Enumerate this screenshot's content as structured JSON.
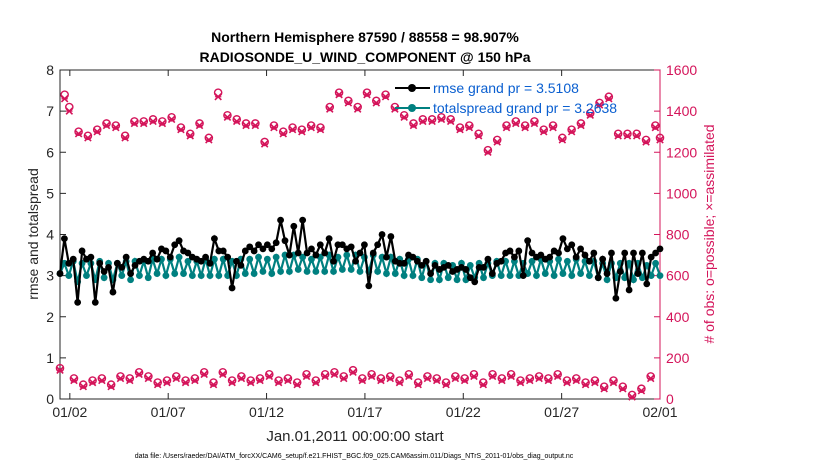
{
  "title_line1": "Northern Hemisphere 87590 / 88558 = 98.907%",
  "title_line2": "RADIOSONDE_U_WIND_COMPONENT @ 150 hPa",
  "xlabel": "Jan.01,2011 00:00:00 start",
  "ylabel_left": "rmse and totalspread",
  "ylabel_right": "# of obs: o=possible; ×=assimilated",
  "footer": "data file: /Users/raeder/DAI/ATM_forcXX/CAM6_setup/f.e21.FHIST_BGC.f09_025.CAM6assim.011/Diags_NTrS_2011-01/obs_diag_output.nc",
  "legend": [
    {
      "label": "rmse grand pr = 3.5108",
      "color": "#000000"
    },
    {
      "label": "totalspread grand pr = 3.2638",
      "color": "#008080"
    }
  ],
  "colors": {
    "rmse": "#000000",
    "spread": "#008080",
    "obs": "#d4145a",
    "axis": "#262626",
    "legend_text": "#0a5fd0"
  },
  "chart_data": {
    "type": "line",
    "x_ticks": [
      "01/02",
      "01/07",
      "01/12",
      "01/17",
      "01/22",
      "01/27",
      "02/01"
    ],
    "x_tick_days": [
      1,
      6,
      11,
      16,
      21,
      26,
      31
    ],
    "xlim_days": [
      0.5,
      31
    ],
    "ylim_left": [
      0,
      8
    ],
    "yticks_left": [
      "0",
      "1",
      "2",
      "3",
      "4",
      "5",
      "6",
      "7",
      "8"
    ],
    "ylim_right": [
      0,
      1600
    ],
    "yticks_right": [
      "0",
      "200",
      "400",
      "600",
      "800",
      "1000",
      "1200",
      "1400",
      "1600"
    ],
    "series": [
      {
        "name": "rmse",
        "axis": "left",
        "marker": "circle",
        "values": [
          3.05,
          3.9,
          3.3,
          3.4,
          2.35,
          3.6,
          3.4,
          3.45,
          2.35,
          3.3,
          3.1,
          3.2,
          2.6,
          3.3,
          3.2,
          3.45,
          3.05,
          3.25,
          3.35,
          3.4,
          3.35,
          3.55,
          3.4,
          3.65,
          3.6,
          3.45,
          3.75,
          3.85,
          3.6,
          3.55,
          3.45,
          3.4,
          3.35,
          3.45,
          3.3,
          3.9,
          3.6,
          3.6,
          3.45,
          2.7,
          3.35,
          3.25,
          3.6,
          3.7,
          3.6,
          3.75,
          3.65,
          3.75,
          3.65,
          3.8,
          4.35,
          3.85,
          3.5,
          4.2,
          3.55,
          4.35,
          3.55,
          3.65,
          3.5,
          3.75,
          3.55,
          3.9,
          3.35,
          3.75,
          3.75,
          3.65,
          3.7,
          3.35,
          3.55,
          3.75,
          2.75,
          3.55,
          3.75,
          4.0,
          3.45,
          3.95,
          3.35,
          3.3,
          3.3,
          3.5,
          3.45,
          3.35,
          3.25,
          3.35,
          3.05,
          3.25,
          3.15,
          3.2,
          3.25,
          3.1,
          3.15,
          3.2,
          3.15,
          2.95,
          2.85,
          3.2,
          3.2,
          3.4,
          3.05,
          3.3,
          3.35,
          3.55,
          3.6,
          3.45,
          3.6,
          3.0,
          3.85,
          3.55,
          3.45,
          3.5,
          3.4,
          3.45,
          3.6,
          3.55,
          3.9,
          3.65,
          3.75,
          3.45,
          3.65,
          3.5,
          3.35,
          3.55,
          2.95,
          3.4,
          3.05,
          3.55,
          2.45,
          3.1,
          3.55,
          2.65,
          3.55,
          3.05,
          3.55,
          2.8,
          3.45,
          3.55,
          3.65
        ]
      },
      {
        "name": "totalspread",
        "axis": "left",
        "marker": "circle",
        "values": [
          3.05,
          3.3,
          3.0,
          3.35,
          2.85,
          3.3,
          3.0,
          3.3,
          2.9,
          3.35,
          2.95,
          3.3,
          2.9,
          3.3,
          3.0,
          3.35,
          2.9,
          3.35,
          3.0,
          3.35,
          2.95,
          3.4,
          3.05,
          3.4,
          3.0,
          3.4,
          3.05,
          3.45,
          3.05,
          3.35,
          3.0,
          3.35,
          3.0,
          3.4,
          3.0,
          3.4,
          3.0,
          3.4,
          3.0,
          3.35,
          3.0,
          3.4,
          3.05,
          3.4,
          3.05,
          3.45,
          3.1,
          3.4,
          3.05,
          3.45,
          3.1,
          3.5,
          3.1,
          3.5,
          3.15,
          3.45,
          3.1,
          3.4,
          3.1,
          3.45,
          3.1,
          3.5,
          3.1,
          3.45,
          3.15,
          3.5,
          3.15,
          3.5,
          3.1,
          3.45,
          3.1,
          3.5,
          3.1,
          3.45,
          3.05,
          3.45,
          3.05,
          3.4,
          3.0,
          3.4,
          3.0,
          3.4,
          2.95,
          3.35,
          2.9,
          3.3,
          2.9,
          3.3,
          2.95,
          3.25,
          2.9,
          3.3,
          2.9,
          3.25,
          2.95,
          3.3,
          2.95,
          3.3,
          3.0,
          3.35,
          3.0,
          3.35,
          3.0,
          3.35,
          3.0,
          3.3,
          3.05,
          3.35,
          3.0,
          3.4,
          3.05,
          3.35,
          3.0,
          3.4,
          3.05,
          3.35,
          3.0,
          3.4,
          3.05,
          3.35,
          3.0,
          3.35,
          2.95,
          3.3,
          2.9,
          3.3,
          2.95,
          3.3,
          2.95,
          3.3,
          2.9,
          3.3,
          2.95,
          3.25,
          3.0,
          3.3,
          3.0
        ]
      },
      {
        "name": "obs possible",
        "axis": "right",
        "marker": "o",
        "values": [
          150,
          1480,
          1420,
          100,
          1300,
          70,
          1280,
          90,
          1310,
          100,
          1340,
          70,
          1330,
          110,
          1280,
          100,
          1350,
          130,
          1350,
          110,
          1360,
          80,
          1350,
          90,
          1370,
          110,
          1320,
          90,
          1290,
          100,
          1340,
          130,
          1270,
          80,
          1490,
          130,
          1380,
          90,
          1360,
          110,
          1340,
          90,
          1340,
          100,
          1250,
          120,
          1330,
          90,
          1300,
          100,
          1320,
          80,
          1310,
          120,
          1330,
          90,
          1320,
          120,
          1420,
          130,
          1490,
          110,
          1450,
          140,
          1420,
          100,
          1490,
          120,
          1450,
          100,
          1480,
          110,
          1420,
          90,
          1380,
          120,
          1340,
          80,
          1360,
          110,
          1360,
          100,
          1370,
          80,
          1360,
          110,
          1320,
          100,
          1330,
          120,
          1290,
          80,
          1210,
          120,
          1260,
          100,
          1330,
          120,
          1350,
          90,
          1330,
          100,
          1350,
          110,
          1310,
          100,
          1330,
          120,
          1270,
          90,
          1310,
          100,
          1340,
          80,
          1390,
          90,
          1440,
          60,
          1470,
          90,
          1290,
          60,
          1290,
          20,
          1290,
          50,
          1260,
          110,
          1330,
          1270
        ]
      },
      {
        "name": "obs assimilated",
        "axis": "right",
        "marker": "x",
        "values": [
          140,
          1460,
          1400,
          90,
          1290,
          60,
          1270,
          80,
          1300,
          90,
          1330,
          60,
          1320,
          100,
          1270,
          90,
          1340,
          120,
          1340,
          100,
          1350,
          70,
          1340,
          80,
          1360,
          100,
          1310,
          80,
          1280,
          90,
          1330,
          120,
          1260,
          70,
          1470,
          120,
          1370,
          80,
          1350,
          100,
          1330,
          80,
          1330,
          90,
          1240,
          110,
          1320,
          80,
          1290,
          90,
          1310,
          70,
          1300,
          110,
          1320,
          80,
          1310,
          110,
          1410,
          120,
          1480,
          100,
          1440,
          130,
          1410,
          90,
          1480,
          110,
          1440,
          90,
          1470,
          100,
          1410,
          80,
          1370,
          110,
          1330,
          70,
          1350,
          100,
          1350,
          90,
          1360,
          70,
          1350,
          100,
          1310,
          90,
          1320,
          110,
          1280,
          70,
          1200,
          110,
          1250,
          90,
          1320,
          110,
          1340,
          80,
          1320,
          90,
          1340,
          100,
          1300,
          90,
          1320,
          110,
          1260,
          80,
          1300,
          90,
          1330,
          70,
          1380,
          80,
          1430,
          50,
          1460,
          80,
          1280,
          50,
          1280,
          10,
          1280,
          40,
          1250,
          100,
          1320,
          1260
        ]
      }
    ]
  }
}
